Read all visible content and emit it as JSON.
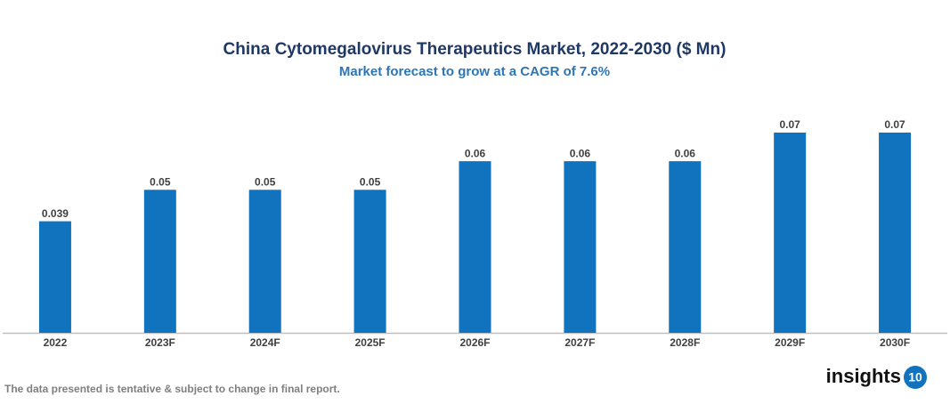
{
  "chart_data": {
    "type": "bar",
    "title": "China Cytomegalovirus Therapeutics Market, 2022-2030 ($ Mn)",
    "subtitle": "Market forecast to grow at a CAGR of 7.6%",
    "categories": [
      "2022",
      "2023F",
      "2024F",
      "2025F",
      "2026F",
      "2027F",
      "2028F",
      "2029F",
      "2030F"
    ],
    "values": [
      0.039,
      0.05,
      0.05,
      0.05,
      0.06,
      0.06,
      0.06,
      0.07,
      0.07
    ],
    "color": "#1173be",
    "ylim": [
      0,
      0.07
    ]
  },
  "footnote": "The data presented is tentative & subject to change in final report.",
  "logo": {
    "text": "insights",
    "badge": "10"
  }
}
